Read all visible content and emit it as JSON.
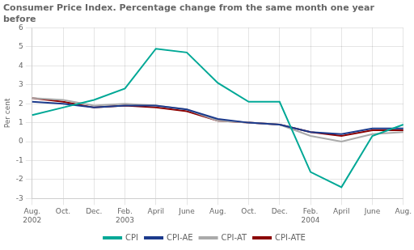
{
  "chart_data": {
    "type": "line",
    "title": "Consumer Price Index. Percentage change from the same month one year\nbefore",
    "ylabel": "Per cent",
    "categories": [
      "Aug.\n2002",
      "Oct.",
      "Dec.",
      "Feb.\n2003",
      "April",
      "June",
      "Aug.",
      "Oct.",
      "Dec.",
      "Feb.\n2004",
      "April",
      "June",
      "Aug."
    ],
    "series": [
      {
        "name": "CPI",
        "color": "#00A896",
        "values": [
          1.4,
          1.8,
          2.2,
          2.8,
          4.9,
          4.7,
          3.1,
          2.1,
          2.1,
          -1.6,
          -2.4,
          0.3,
          0.9
        ]
      },
      {
        "name": "CPI-AE",
        "color": "#1B3A8C",
        "values": [
          2.1,
          2.0,
          1.8,
          1.9,
          1.9,
          1.7,
          1.2,
          1.0,
          0.9,
          0.5,
          0.4,
          0.7,
          0.7
        ]
      },
      {
        "name": "CPI-AT",
        "color": "#AAAAAA",
        "values": [
          2.3,
          2.2,
          1.9,
          2.0,
          1.9,
          1.7,
          1.1,
          1.0,
          0.9,
          0.3,
          0.0,
          0.4,
          0.5
        ]
      },
      {
        "name": "CPI-ATE",
        "color": "#8B0000",
        "values": [
          2.3,
          2.1,
          1.8,
          1.9,
          1.8,
          1.6,
          1.1,
          1.0,
          0.9,
          0.5,
          0.3,
          0.6,
          0.6
        ]
      }
    ],
    "ylim": [
      -3,
      6
    ],
    "yticks": [
      -3,
      -2,
      -1,
      0,
      1,
      2,
      3,
      4,
      5,
      6
    ],
    "grid": true,
    "legend": "bottom"
  }
}
